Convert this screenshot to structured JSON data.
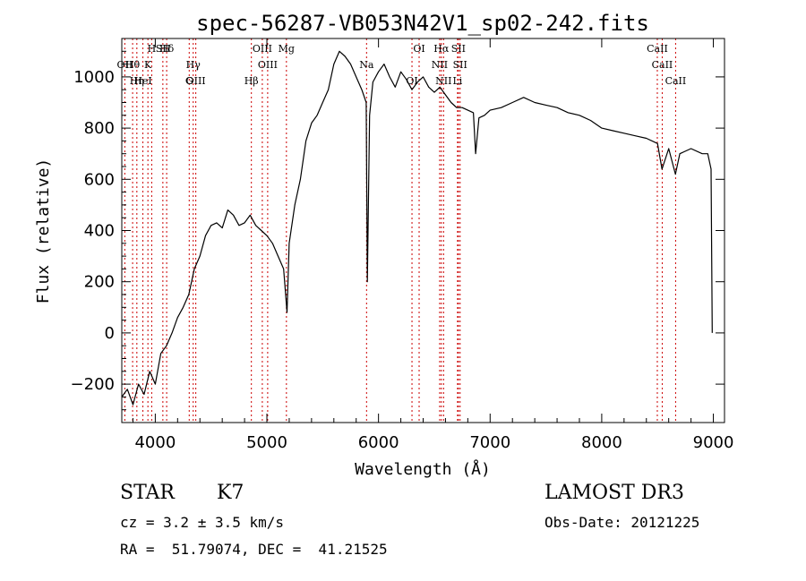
{
  "chart_data": {
    "type": "line",
    "title": "spec-56287-VB053N42V1_sp02-242.fits",
    "xlabel": "Wavelength (Å)",
    "ylabel": "Flux (relative)",
    "xlim": [
      3700,
      9100
    ],
    "ylim": [
      -350,
      1150
    ],
    "x_ticks": [
      4000,
      5000,
      6000,
      7000,
      8000,
      9000
    ],
    "y_ticks": [
      -200,
      0,
      200,
      400,
      600,
      800,
      1000
    ],
    "grid": false,
    "line_color": "#000000",
    "marker_color": "#cc0000",
    "series": [
      {
        "x": [
          3700,
          3750,
          3800,
          3850,
          3900,
          3950,
          4000,
          4050,
          4100,
          4150,
          4200,
          4250,
          4300,
          4350,
          4400,
          4450,
          4500,
          4550,
          4600,
          4650,
          4700,
          4750,
          4800,
          4850,
          4900,
          4950,
          5000,
          5050,
          5100,
          5150,
          5180,
          5200,
          5250,
          5300,
          5350,
          5400,
          5450,
          5500,
          5550,
          5600,
          5650,
          5700,
          5750,
          5800,
          5850,
          5890,
          5900,
          5920,
          5950,
          6000,
          6050,
          6100,
          6150,
          6200,
          6250,
          6300,
          6350,
          6400,
          6450,
          6500,
          6550,
          6600,
          6650,
          6700,
          6750,
          6800,
          6850,
          6870,
          6900,
          6950,
          7000,
          7100,
          7200,
          7300,
          7400,
          7500,
          7600,
          7700,
          7800,
          7900,
          8000,
          8100,
          8200,
          8300,
          8400,
          8500,
          8540,
          8600,
          8660,
          8700,
          8800,
          8900,
          8950,
          8980,
          8990
        ],
        "values": [
          -250,
          -220,
          -280,
          -200,
          -240,
          -150,
          -200,
          -80,
          -50,
          0,
          60,
          100,
          150,
          250,
          300,
          380,
          420,
          430,
          410,
          480,
          460,
          420,
          430,
          460,
          420,
          400,
          380,
          350,
          300,
          250,
          80,
          350,
          500,
          600,
          750,
          820,
          850,
          900,
          950,
          1050,
          1100,
          1080,
          1050,
          1000,
          950,
          900,
          200,
          850,
          980,
          1020,
          1050,
          1000,
          960,
          1020,
          990,
          950,
          980,
          1000,
          960,
          940,
          960,
          930,
          900,
          880,
          880,
          870,
          860,
          700,
          840,
          850,
          870,
          880,
          900,
          920,
          900,
          890,
          880,
          860,
          850,
          830,
          800,
          790,
          780,
          770,
          760,
          740,
          640,
          720,
          620,
          700,
          720,
          700,
          700,
          640,
          0
        ]
      }
    ],
    "line_markers": [
      {
        "label": "Hδ",
        "x": 4102
      },
      {
        "label": "Hγ",
        "x": 4340
      },
      {
        "label": "Hβ",
        "x": 4861
      },
      {
        "label": "Hα",
        "x": 6563
      },
      {
        "label": "Hθ",
        "x": 3797
      },
      {
        "label": "Hη",
        "x": 3835
      },
      {
        "label": "H",
        "x": 3968
      },
      {
        "label": "K",
        "x": 3934
      },
      {
        "label": "HeI",
        "x": 3889
      },
      {
        "label": "SII",
        "x": 4068
      },
      {
        "label": "OII",
        "x": 3727
      },
      {
        "label": "OIII",
        "x": 4363
      },
      {
        "label": "OIII",
        "x": 4959
      },
      {
        "label": "OIII",
        "x": 5007
      },
      {
        "label": "G",
        "x": 4304
      },
      {
        "label": "Mg",
        "x": 5175
      },
      {
        "label": "Na",
        "x": 5893
      },
      {
        "label": "OI",
        "x": 6300
      },
      {
        "label": "OI",
        "x": 6364
      },
      {
        "label": "NII",
        "x": 6548
      },
      {
        "label": "NII",
        "x": 6583
      },
      {
        "label": "SII",
        "x": 6716
      },
      {
        "label": "SII",
        "x": 6731
      },
      {
        "label": "Li",
        "x": 6708
      },
      {
        "label": "CaII",
        "x": 8498
      },
      {
        "label": "CaII",
        "x": 8542
      },
      {
        "label": "CaII",
        "x": 8662
      }
    ]
  },
  "info": {
    "object_class": "STAR",
    "subclass": "K7",
    "survey": "LAMOST DR3",
    "redshift_text": "cz = 3.2 ± 3.5 km/s",
    "obs_date_text": "Obs-Date: 20121225",
    "coords_text": "RA =  51.79074, DEC =  41.21525"
  }
}
